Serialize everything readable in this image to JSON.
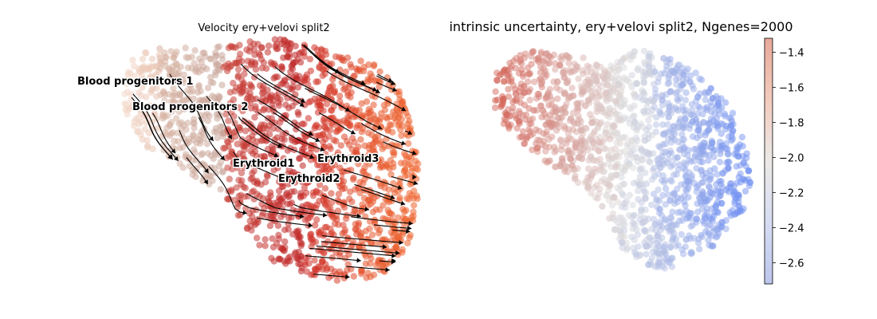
{
  "chart_data": [
    {
      "type": "scatter",
      "panel": "left",
      "title": "Velocity ery+velovi split2",
      "xlabel": "",
      "ylabel": "",
      "grid": false,
      "overlay": "streamlines with arrowheads",
      "clusters": [
        {
          "name": "Blood progenitors 1",
          "color": "#f3d7c8",
          "center": [
            0.14,
            0.82
          ]
        },
        {
          "name": "Blood progenitors 2",
          "color": "#c9a79b",
          "center": [
            0.3,
            0.72
          ]
        },
        {
          "name": "Erythroid1",
          "color": "#c62a2a",
          "center": [
            0.49,
            0.45
          ]
        },
        {
          "name": "Erythroid2",
          "color": "#d84531",
          "center": [
            0.63,
            0.4
          ]
        },
        {
          "name": "Erythroid3",
          "color": "#ea5a2a",
          "center": [
            0.77,
            0.47
          ]
        }
      ]
    },
    {
      "type": "scatter",
      "panel": "right",
      "title": "intrinsic uncertainty, ery+velovi split2, Ngenes=2000",
      "xlabel": "",
      "ylabel": "",
      "grid": false,
      "colormap": "coolwarm",
      "colorbar": {
        "ticks": [
          -1.4,
          -1.6,
          -1.8,
          -2.0,
          -2.2,
          -2.4,
          -2.6
        ],
        "tick_labels": [
          "−1.4",
          "−1.6",
          "−1.8",
          "−2.0",
          "−2.2",
          "−2.4",
          "−2.6"
        ],
        "range": [
          -2.72,
          -1.32
        ]
      },
      "value_range": [
        -2.7,
        -1.35
      ]
    }
  ]
}
